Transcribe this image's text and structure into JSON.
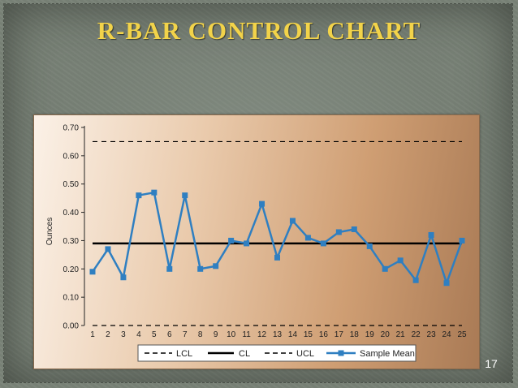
{
  "slide": {
    "title": "R-BAR CONTROL CHART",
    "page_number": "17"
  },
  "chart_data": {
    "type": "line",
    "title": "",
    "xlabel": "",
    "ylabel": "Ounces",
    "xlim": [
      1,
      25
    ],
    "ylim": [
      0.0,
      0.7
    ],
    "y_ticks": [
      "0.00",
      "0.10",
      "0.20",
      "0.30",
      "0.40",
      "0.50",
      "0.60",
      "0.70"
    ],
    "x_ticks": [
      "1",
      "2",
      "3",
      "4",
      "5",
      "6",
      "7",
      "8",
      "9",
      "10",
      "11",
      "12",
      "13",
      "14",
      "15",
      "16",
      "17",
      "18",
      "19",
      "20",
      "21",
      "22",
      "23",
      "24",
      "25"
    ],
    "x": [
      1,
      2,
      3,
      4,
      5,
      6,
      7,
      8,
      9,
      10,
      11,
      12,
      13,
      14,
      15,
      16,
      17,
      18,
      19,
      20,
      21,
      22,
      23,
      24,
      25
    ],
    "series": [
      {
        "name": "LCL",
        "values": [
          0.0,
          0.0,
          0.0,
          0.0,
          0.0,
          0.0,
          0.0,
          0.0,
          0.0,
          0.0,
          0.0,
          0.0,
          0.0,
          0.0,
          0.0,
          0.0,
          0.0,
          0.0,
          0.0,
          0.0,
          0.0,
          0.0,
          0.0,
          0.0,
          0.0
        ],
        "color": "#000000",
        "style": "dashed"
      },
      {
        "name": "CL",
        "values": [
          0.29,
          0.29,
          0.29,
          0.29,
          0.29,
          0.29,
          0.29,
          0.29,
          0.29,
          0.29,
          0.29,
          0.29,
          0.29,
          0.29,
          0.29,
          0.29,
          0.29,
          0.29,
          0.29,
          0.29,
          0.29,
          0.29,
          0.29,
          0.29,
          0.29
        ],
        "color": "#000000",
        "style": "solid"
      },
      {
        "name": "UCL",
        "values": [
          0.65,
          0.65,
          0.65,
          0.65,
          0.65,
          0.65,
          0.65,
          0.65,
          0.65,
          0.65,
          0.65,
          0.65,
          0.65,
          0.65,
          0.65,
          0.65,
          0.65,
          0.65,
          0.65,
          0.65,
          0.65,
          0.65,
          0.65,
          0.65,
          0.65
        ],
        "color": "#000000",
        "style": "dashed"
      },
      {
        "name": "Sample Mean",
        "values": [
          0.19,
          0.27,
          0.17,
          0.46,
          0.47,
          0.2,
          0.46,
          0.2,
          0.21,
          0.3,
          0.29,
          0.43,
          0.24,
          0.37,
          0.31,
          0.29,
          0.33,
          0.34,
          0.28,
          0.2,
          0.23,
          0.16,
          0.32,
          0.15,
          0.3
        ],
        "color": "#2f7fc1",
        "style": "solid-square-markers"
      }
    ],
    "legend": {
      "placement": "bottom-center",
      "entries": [
        "LCL",
        "CL",
        "UCL",
        "Sample Mean"
      ]
    },
    "grid": false
  }
}
